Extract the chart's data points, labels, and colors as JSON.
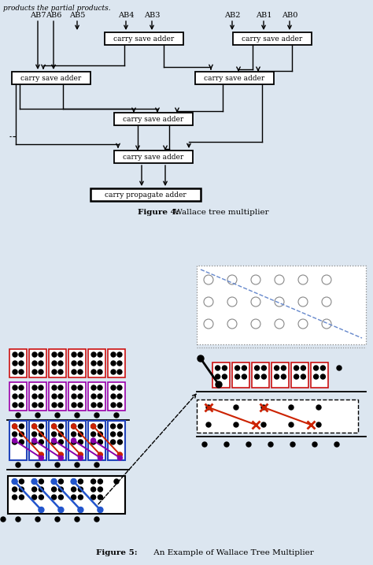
{
  "fig_width": 4.74,
  "fig_height": 7.17,
  "dpi": 100,
  "bg_color": "#dce6f0",
  "white": "#ffffff",
  "black": "#000000",
  "top_text": "products the partial products.",
  "fig4_caption_bold": "Figure 4:",
  "fig4_caption_rest": " Wallace tree multiplier",
  "fig5_caption_bold": "Figure 5:",
  "fig5_caption_rest": " An Example of Wallace Tree Multiplier"
}
